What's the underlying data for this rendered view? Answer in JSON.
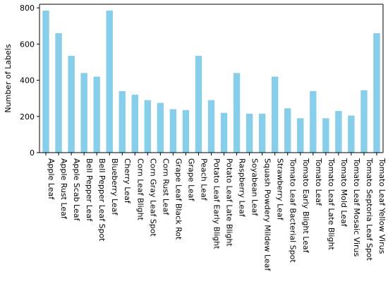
{
  "chart_data": {
    "type": "bar",
    "ylabel": "Number of Labels",
    "xlabel": "",
    "title": "",
    "ylim": [
      0,
      820
    ],
    "yticks": [
      0,
      200,
      400,
      600,
      800
    ],
    "bar_color": "#87CEEB",
    "categories": [
      "Apple Leaf",
      "Apple Rust Leaf",
      "Apple Scab Leaf",
      "Bell Pepper Leaf",
      "Bell Pepper Leaf Spot",
      "Blueberry Leaf",
      "Cherry Leaf",
      "Corn Leaf Blight",
      "Corn Gray Leaf Spot",
      "Corn Rust Leaf",
      "Grape Leaf Black Rot",
      "Grape Leaf",
      "Peach Leaf",
      "Potato Leaf Early Blight",
      "Potato Leaf Late Blight",
      "Raspberry Leaf",
      "Soyabean Leaf",
      "Squash Powdery Mildew Leaf",
      "Strawberry Leaf",
      "Tomato Leaf Bacterial Spot",
      "Tomato Early Blight Leaf",
      "Tomato Leaf",
      "Tomato Leaf Late Blight",
      "Tomato Mold Leaf",
      "Tomato Leaf Mosaic Virus",
      "Tomato Septoria Leaf Spot",
      "Tomato Leaf Yellow Virus"
    ],
    "values": [
      785,
      660,
      535,
      440,
      420,
      785,
      340,
      320,
      290,
      275,
      240,
      235,
      535,
      290,
      220,
      440,
      215,
      215,
      420,
      245,
      190,
      340,
      190,
      230,
      205,
      345,
      660
    ]
  }
}
